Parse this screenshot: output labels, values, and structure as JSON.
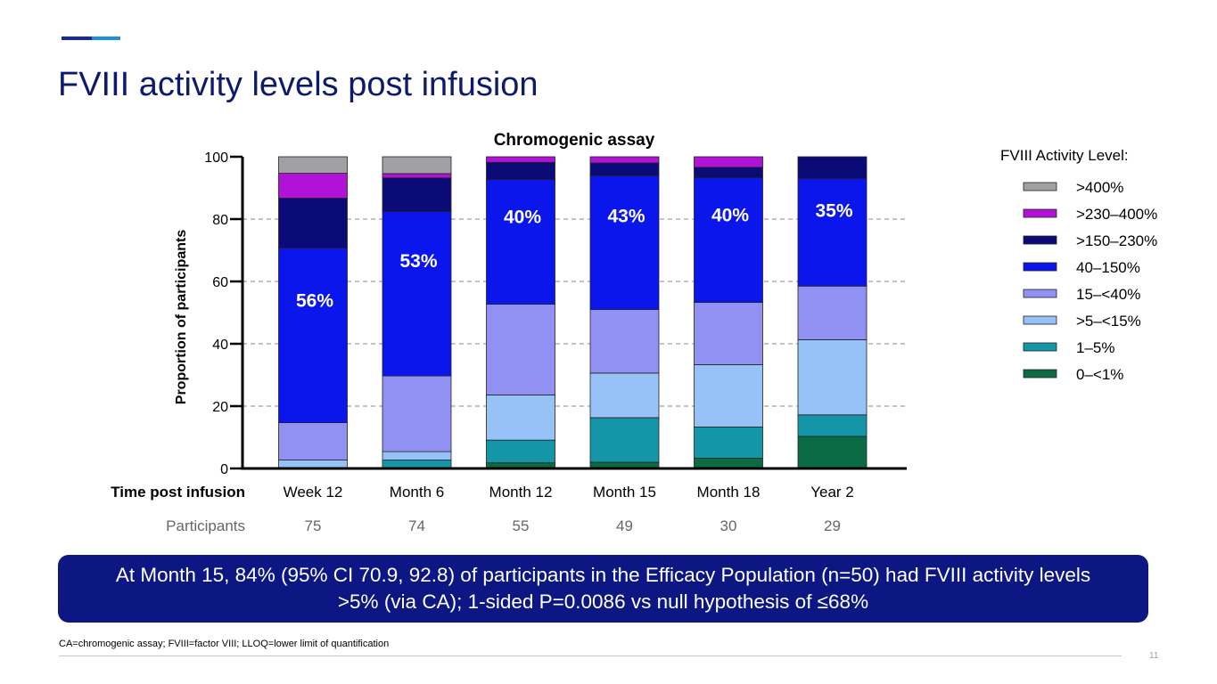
{
  "slide": {
    "title": "FVIII activity levels post infusion",
    "callout": "At Month 15, 84% (95% CI 70.9, 92.8) of participants in the Efficacy Population (n=50) had FVIII activity levels >5% (via CA); 1-sided P=0.0086 vs null hypothesis of ≤68%",
    "footnote": "CA=chromogenic assay; FVIII=factor VIII; LLOQ=lower limit of quantification",
    "page_number": "11",
    "colors": {
      "title": "#0e1a6e",
      "callout_bg": "#0c1784",
      "accent_dark": "#1428a0",
      "accent_light": "#1e8fe0"
    }
  },
  "chart_data": {
    "type": "bar",
    "stacked": true,
    "title": "Chromogenic assay",
    "ylabel": "Proportion of participants",
    "xlabel": "Time post infusion",
    "ylim": [
      0,
      100
    ],
    "yticks": [
      0,
      20,
      40,
      60,
      80,
      100
    ],
    "grid": "dashed at 20, 40, 60, 80",
    "legend_title": "FVIII Activity Level:",
    "legend_position": "right",
    "categories": [
      "Week 12",
      "Month 6",
      "Month 12",
      "Month 15",
      "Month 18",
      "Year 2"
    ],
    "participants_label": "Participants",
    "participants": [
      "75",
      "74",
      "55",
      "49",
      "30",
      "29"
    ],
    "series": [
      {
        "name": "0–<1%",
        "color": "#0b6b45",
        "values": [
          0,
          0,
          1.8,
          2.0,
          3.3,
          10.3
        ]
      },
      {
        "name": "1–5%",
        "color": "#1596a8",
        "values": [
          0,
          2.7,
          7.3,
          14.3,
          10.0,
          6.9
        ]
      },
      {
        "name": ">5–<15%",
        "color": "#96c2f8",
        "values": [
          2.7,
          2.7,
          14.5,
          14.3,
          20.0,
          24.1
        ]
      },
      {
        "name": "15–<40%",
        "color": "#9191f3",
        "values": [
          12.0,
          24.3,
          29.1,
          20.4,
          20.0,
          17.2
        ]
      },
      {
        "name": "40–150%",
        "color": "#0a16ec",
        "values": [
          56.0,
          52.7,
          40.0,
          42.9,
          40.0,
          34.5
        ]
      },
      {
        "name": ">150–230%",
        "color": "#0b0b78",
        "values": [
          16.0,
          10.8,
          5.5,
          4.1,
          3.3,
          7.0
        ]
      },
      {
        "name": ">230–400%",
        "color": "#b012d6",
        "values": [
          8.0,
          1.4,
          1.8,
          2.0,
          3.4,
          0
        ]
      },
      {
        "name": ">400%",
        "color": "#a1a1a5",
        "values": [
          5.3,
          5.4,
          0,
          0,
          0,
          0
        ]
      }
    ],
    "annotation_series": "40–150%",
    "annotations": [
      "56%",
      "53%",
      "40%",
      "43%",
      "40%",
      "35%"
    ]
  }
}
